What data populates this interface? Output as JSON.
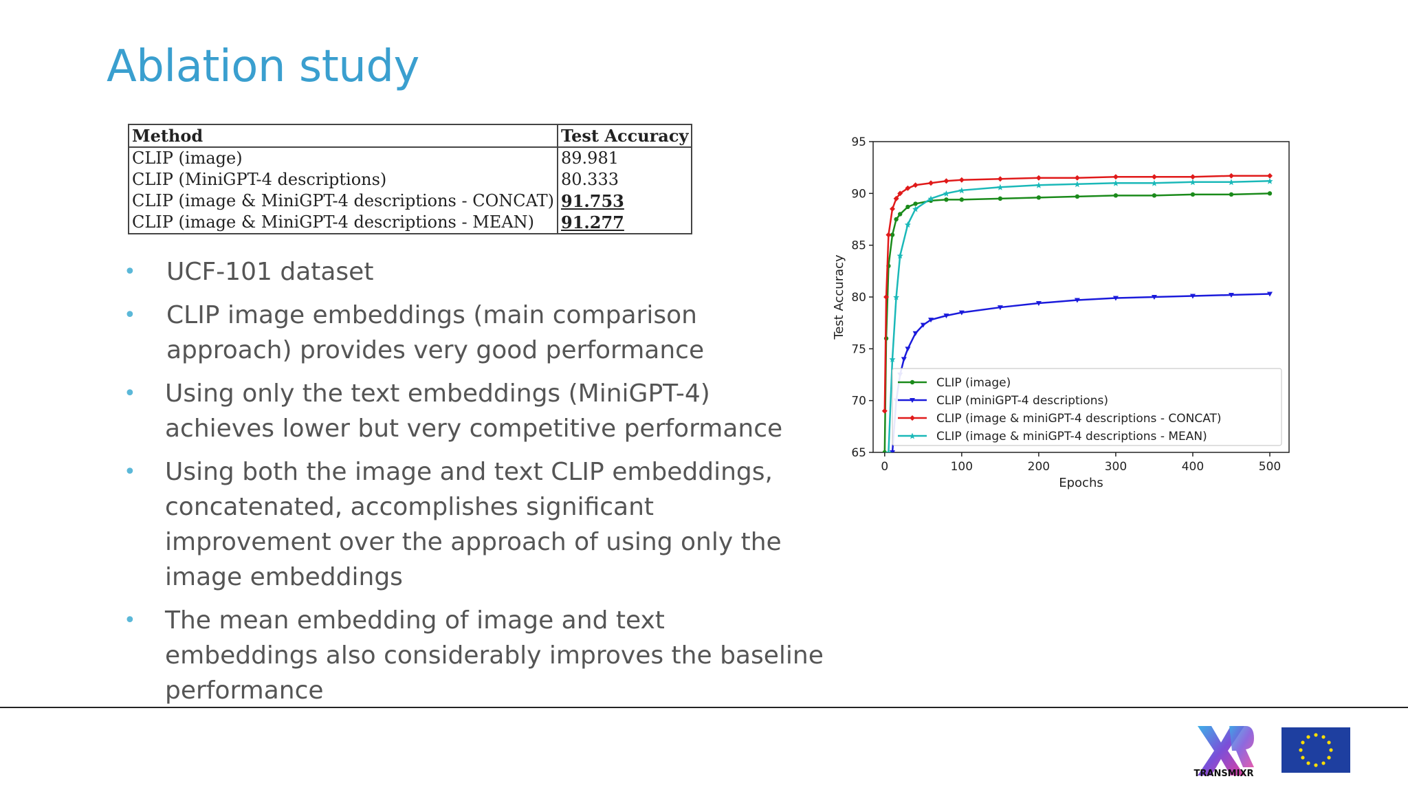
{
  "slide": {
    "title": "Ablation study"
  },
  "table": {
    "headers": [
      "Method",
      "Test Accuracy"
    ],
    "rows": [
      {
        "method": "CLIP (image)",
        "accuracy": "89.981"
      },
      {
        "method": "CLIP (MiniGPT-4 descriptions)",
        "accuracy": "80.333"
      },
      {
        "method": "CLIP (image & MiniGPT-4 descriptions - CONCAT)",
        "accuracy": "91.753"
      },
      {
        "method": "CLIP (image & MiniGPT-4 descriptions - MEAN)",
        "accuracy": "91.277"
      }
    ]
  },
  "bullets": [
    "UCF-101 dataset",
    "CLIP image embeddings (main comparison approach) provides very good performance",
    "Using only the text embeddings (MiniGPT-4) achieves lower but very competitive performance",
    "Using both the image and text CLIP embeddings, concatenated, accomplishes significant improvement over the approach of using only the image embeddings",
    "The mean embedding of image and text embeddings also considerably improves the baseline performance"
  ],
  "chart_data": {
    "type": "line",
    "title": "",
    "xlabel": "Epochs",
    "ylabel": "Test Accuracy",
    "xlim": [
      -15,
      525
    ],
    "ylim": [
      65,
      95
    ],
    "xticks": [
      0,
      100,
      200,
      300,
      400,
      500
    ],
    "yticks": [
      65,
      70,
      75,
      80,
      85,
      90,
      95
    ],
    "legend_position": "lower-right",
    "grid": false,
    "series": [
      {
        "name": "CLIP (image)",
        "color": "#1a8a1a",
        "marker": "circle",
        "x": [
          0,
          2,
          5,
          10,
          15,
          20,
          30,
          40,
          60,
          80,
          100,
          150,
          200,
          250,
          300,
          350,
          400,
          450,
          500
        ],
        "y": [
          65,
          76,
          83,
          86,
          87.5,
          88,
          88.7,
          89,
          89.3,
          89.4,
          89.4,
          89.5,
          89.6,
          89.7,
          89.8,
          89.8,
          89.9,
          89.9,
          90
        ]
      },
      {
        "name": "CLIP (miniGPT-4 descriptions)",
        "color": "#1a1adb",
        "marker": "triangle-down",
        "x": [
          10,
          15,
          20,
          25,
          30,
          40,
          50,
          60,
          80,
          100,
          150,
          200,
          250,
          300,
          350,
          400,
          450,
          500
        ],
        "y": [
          65,
          70,
          72.5,
          74,
          75,
          76.5,
          77.3,
          77.8,
          78.2,
          78.5,
          79,
          79.4,
          79.7,
          79.9,
          80,
          80.1,
          80.2,
          80.3
        ]
      },
      {
        "name": "CLIP (image & miniGPT-4 descriptions - CONCAT)",
        "color": "#e01a1a",
        "marker": "diamond",
        "x": [
          0,
          2,
          5,
          10,
          15,
          20,
          30,
          40,
          60,
          80,
          100,
          150,
          200,
          250,
          300,
          350,
          400,
          450,
          500
        ],
        "y": [
          69,
          80,
          86,
          88.5,
          89.5,
          90,
          90.5,
          90.8,
          91,
          91.2,
          91.3,
          91.4,
          91.5,
          91.5,
          91.6,
          91.6,
          91.6,
          91.7,
          91.7
        ]
      },
      {
        "name": "CLIP (image & miniGPT-4 descriptions - MEAN)",
        "color": "#1ab8b8",
        "marker": "star",
        "x": [
          5,
          10,
          15,
          20,
          30,
          40,
          60,
          80,
          100,
          150,
          200,
          250,
          300,
          350,
          400,
          450,
          500
        ],
        "y": [
          65,
          74,
          80,
          84,
          87,
          88.5,
          89.5,
          90,
          90.3,
          90.6,
          90.8,
          90.9,
          91,
          91,
          91.1,
          91.1,
          91.2
        ]
      }
    ]
  },
  "footer": {
    "logo_text": "TRANSMIXR"
  }
}
